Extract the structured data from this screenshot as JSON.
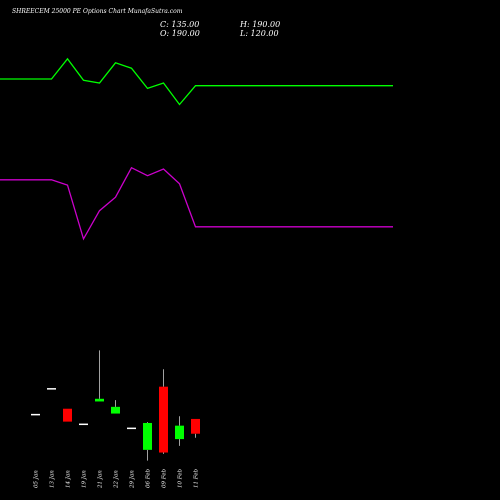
{
  "header": {
    "title": "SHREECEM 25000 PE Options Chart MunafaSutra.com",
    "close_label": "C: 135.00",
    "open_label": "O: 190.00",
    "high_label": "H: 190.00",
    "low_label": "L: 120.00"
  },
  "colors": {
    "background": "#000000",
    "up": "#00ff00",
    "down": "#ff0000",
    "neutral": "#ffffff",
    "upper_line": "#00ff00",
    "lower_line": "#cc00cc",
    "wick": "#cccccc"
  },
  "chart_data": {
    "type": "candlestick",
    "categories": [
      "05 Jan",
      "13 Jan",
      "14 Jan",
      "19 Jan",
      "21 Jan",
      "22 Jan",
      "29 Jan",
      "06 Feb",
      "09 Feb",
      "10 Feb",
      "11 Feb"
    ],
    "candles": [
      {
        "date": "05 Jan",
        "open": 206,
        "high": 206,
        "low": 206,
        "close": 206,
        "color": "neutral"
      },
      {
        "date": "13 Jan",
        "open": 302,
        "high": 302,
        "low": 302,
        "close": 302,
        "color": "neutral"
      },
      {
        "date": "14 Jan",
        "open": 228,
        "high": 228,
        "low": 180,
        "close": 180,
        "color": "down"
      },
      {
        "date": "19 Jan",
        "open": 170,
        "high": 170,
        "low": 170,
        "close": 170,
        "color": "neutral"
      },
      {
        "date": "21 Jan",
        "open": 255,
        "high": 445,
        "low": 255,
        "close": 265,
        "color": "up"
      },
      {
        "date": "22 Jan",
        "open": 210,
        "high": 260,
        "low": 210,
        "close": 235,
        "color": "up"
      },
      {
        "date": "29 Jan",
        "open": 155,
        "high": 155,
        "low": 155,
        "close": 155,
        "color": "neutral"
      },
      {
        "date": "06 Feb",
        "open": 75,
        "high": 178,
        "low": 35,
        "close": 175,
        "color": "up"
      },
      {
        "date": "09 Feb",
        "open": 310,
        "high": 375,
        "low": 60,
        "close": 65,
        "color": "down"
      },
      {
        "date": "10 Feb",
        "open": 115,
        "high": 200,
        "low": 90,
        "close": 165,
        "color": "up"
      },
      {
        "date": "11 Feb",
        "open": 190,
        "high": 190,
        "low": 120,
        "close": 135,
        "color": "down"
      }
    ],
    "upper_line": [
      1455,
      1455,
      1530,
      1450,
      1440,
      1515,
      1495,
      1420,
      1440,
      1360,
      1430
    ],
    "lower_line": [
      1080,
      1080,
      1060,
      860,
      965,
      1015,
      1125,
      1095,
      1120,
      1065,
      905
    ],
    "ylim": [
      0,
      1600
    ]
  }
}
